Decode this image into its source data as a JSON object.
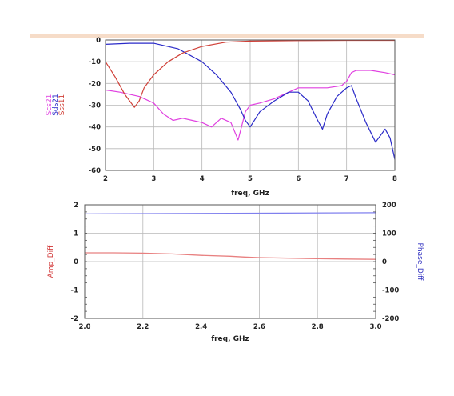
{
  "chart_data": [
    {
      "type": "line",
      "xlabel": "freq, GHz",
      "xlim": [
        2,
        8
      ],
      "ylim": [
        -60,
        0
      ],
      "x_ticks": [
        "2",
        "3",
        "4",
        "5",
        "6",
        "7",
        "8"
      ],
      "y_ticks": [
        "0",
        "-10",
        "-20",
        "-30",
        "-40",
        "-50",
        "-60"
      ],
      "grid": true,
      "legend": "left-vertical",
      "series": [
        {
          "name": "Scs21",
          "color": "#e040e0",
          "x": [
            2.0,
            2.3,
            2.7,
            3.0,
            3.2,
            3.4,
            3.6,
            3.8,
            4.0,
            4.2,
            4.4,
            4.6,
            4.75,
            4.9,
            5.0,
            5.2,
            5.5,
            5.8,
            6.0,
            6.3,
            6.6,
            6.9,
            7.0,
            7.1,
            7.2,
            7.5,
            7.8,
            8.0
          ],
          "y": [
            -23,
            -24,
            -26,
            -29,
            -34,
            -37,
            -36,
            -37,
            -38,
            -40,
            -36,
            -38,
            -46,
            -33,
            -30,
            -29,
            -27,
            -24,
            -22,
            -22,
            -22,
            -21,
            -19,
            -15,
            -14,
            -14,
            -15,
            -16
          ]
        },
        {
          "name": "Sds21",
          "color": "#2a2ac8",
          "x": [
            2.0,
            2.5,
            3.0,
            3.5,
            4.0,
            4.3,
            4.6,
            4.8,
            4.9,
            5.0,
            5.2,
            5.5,
            5.8,
            6.0,
            6.2,
            6.4,
            6.5,
            6.6,
            6.8,
            7.0,
            7.1,
            7.2,
            7.4,
            7.6,
            7.8,
            7.9,
            8.0
          ],
          "y": [
            -2,
            -1.5,
            -1.5,
            -4,
            -10,
            -16,
            -24,
            -32,
            -37,
            -40,
            -33,
            -28,
            -24,
            -24,
            -28,
            -37,
            -41,
            -34,
            -26,
            -22,
            -21,
            -27,
            -38,
            -47,
            -41,
            -45,
            -55
          ]
        },
        {
          "name": "Sss11",
          "color": "#d04038",
          "x": [
            2.0,
            2.2,
            2.4,
            2.6,
            2.7,
            2.8,
            3.0,
            3.3,
            3.6,
            4.0,
            4.5,
            5.0,
            6.0,
            7.0,
            8.0
          ],
          "y": [
            -10,
            -17,
            -25,
            -31,
            -28,
            -22,
            -16,
            -10,
            -6,
            -3,
            -1,
            -0.5,
            -0.3,
            -0.2,
            -0.2
          ]
        }
      ]
    },
    {
      "type": "line",
      "xlabel": "freq, GHz",
      "xlim": [
        2.0,
        3.0
      ],
      "ylim": [
        -2,
        2
      ],
      "y2lim": [
        -200,
        200
      ],
      "x_ticks": [
        "2.0",
        "2.2",
        "2.4",
        "2.6",
        "2.8",
        "3.0"
      ],
      "y_ticks": [
        "2",
        "1",
        "0",
        "-1",
        "-2"
      ],
      "y2_ticks": [
        "200",
        "100",
        "0",
        "-100",
        "-200"
      ],
      "grid": true,
      "ylabel": "Amp_Diff",
      "y2label": "Phase_Diff",
      "series": [
        {
          "name": "Amp_Diff",
          "axis": "left",
          "color": "#e88080",
          "x": [
            2.0,
            2.1,
            2.2,
            2.3,
            2.4,
            2.5,
            2.55,
            2.6,
            2.7,
            2.8,
            2.9,
            3.0
          ],
          "y": [
            0.31,
            0.31,
            0.3,
            0.27,
            0.22,
            0.19,
            0.16,
            0.14,
            0.12,
            0.1,
            0.09,
            0.08
          ]
        },
        {
          "name": "Phase_Diff",
          "axis": "right",
          "color": "#8080ee",
          "x": [
            2.0,
            2.5,
            3.0
          ],
          "y": [
            168,
            170,
            172
          ]
        }
      ]
    }
  ],
  "top_legend": {
    "entries": [
      {
        "label": "Scs21",
        "color": "#e040e0"
      },
      {
        "label": "Sds21",
        "color": "#2a2ac8"
      },
      {
        "label": "Sss11",
        "color": "#d04038"
      }
    ]
  },
  "bottom_labels": {
    "left": {
      "label": "Amp_Diff",
      "color": "#d03030"
    },
    "right": {
      "label": "Phase_Diff",
      "color": "#3030c0"
    }
  },
  "colors": {
    "header_rule": "#f6dcc8",
    "grid": "#b8b8b8"
  }
}
